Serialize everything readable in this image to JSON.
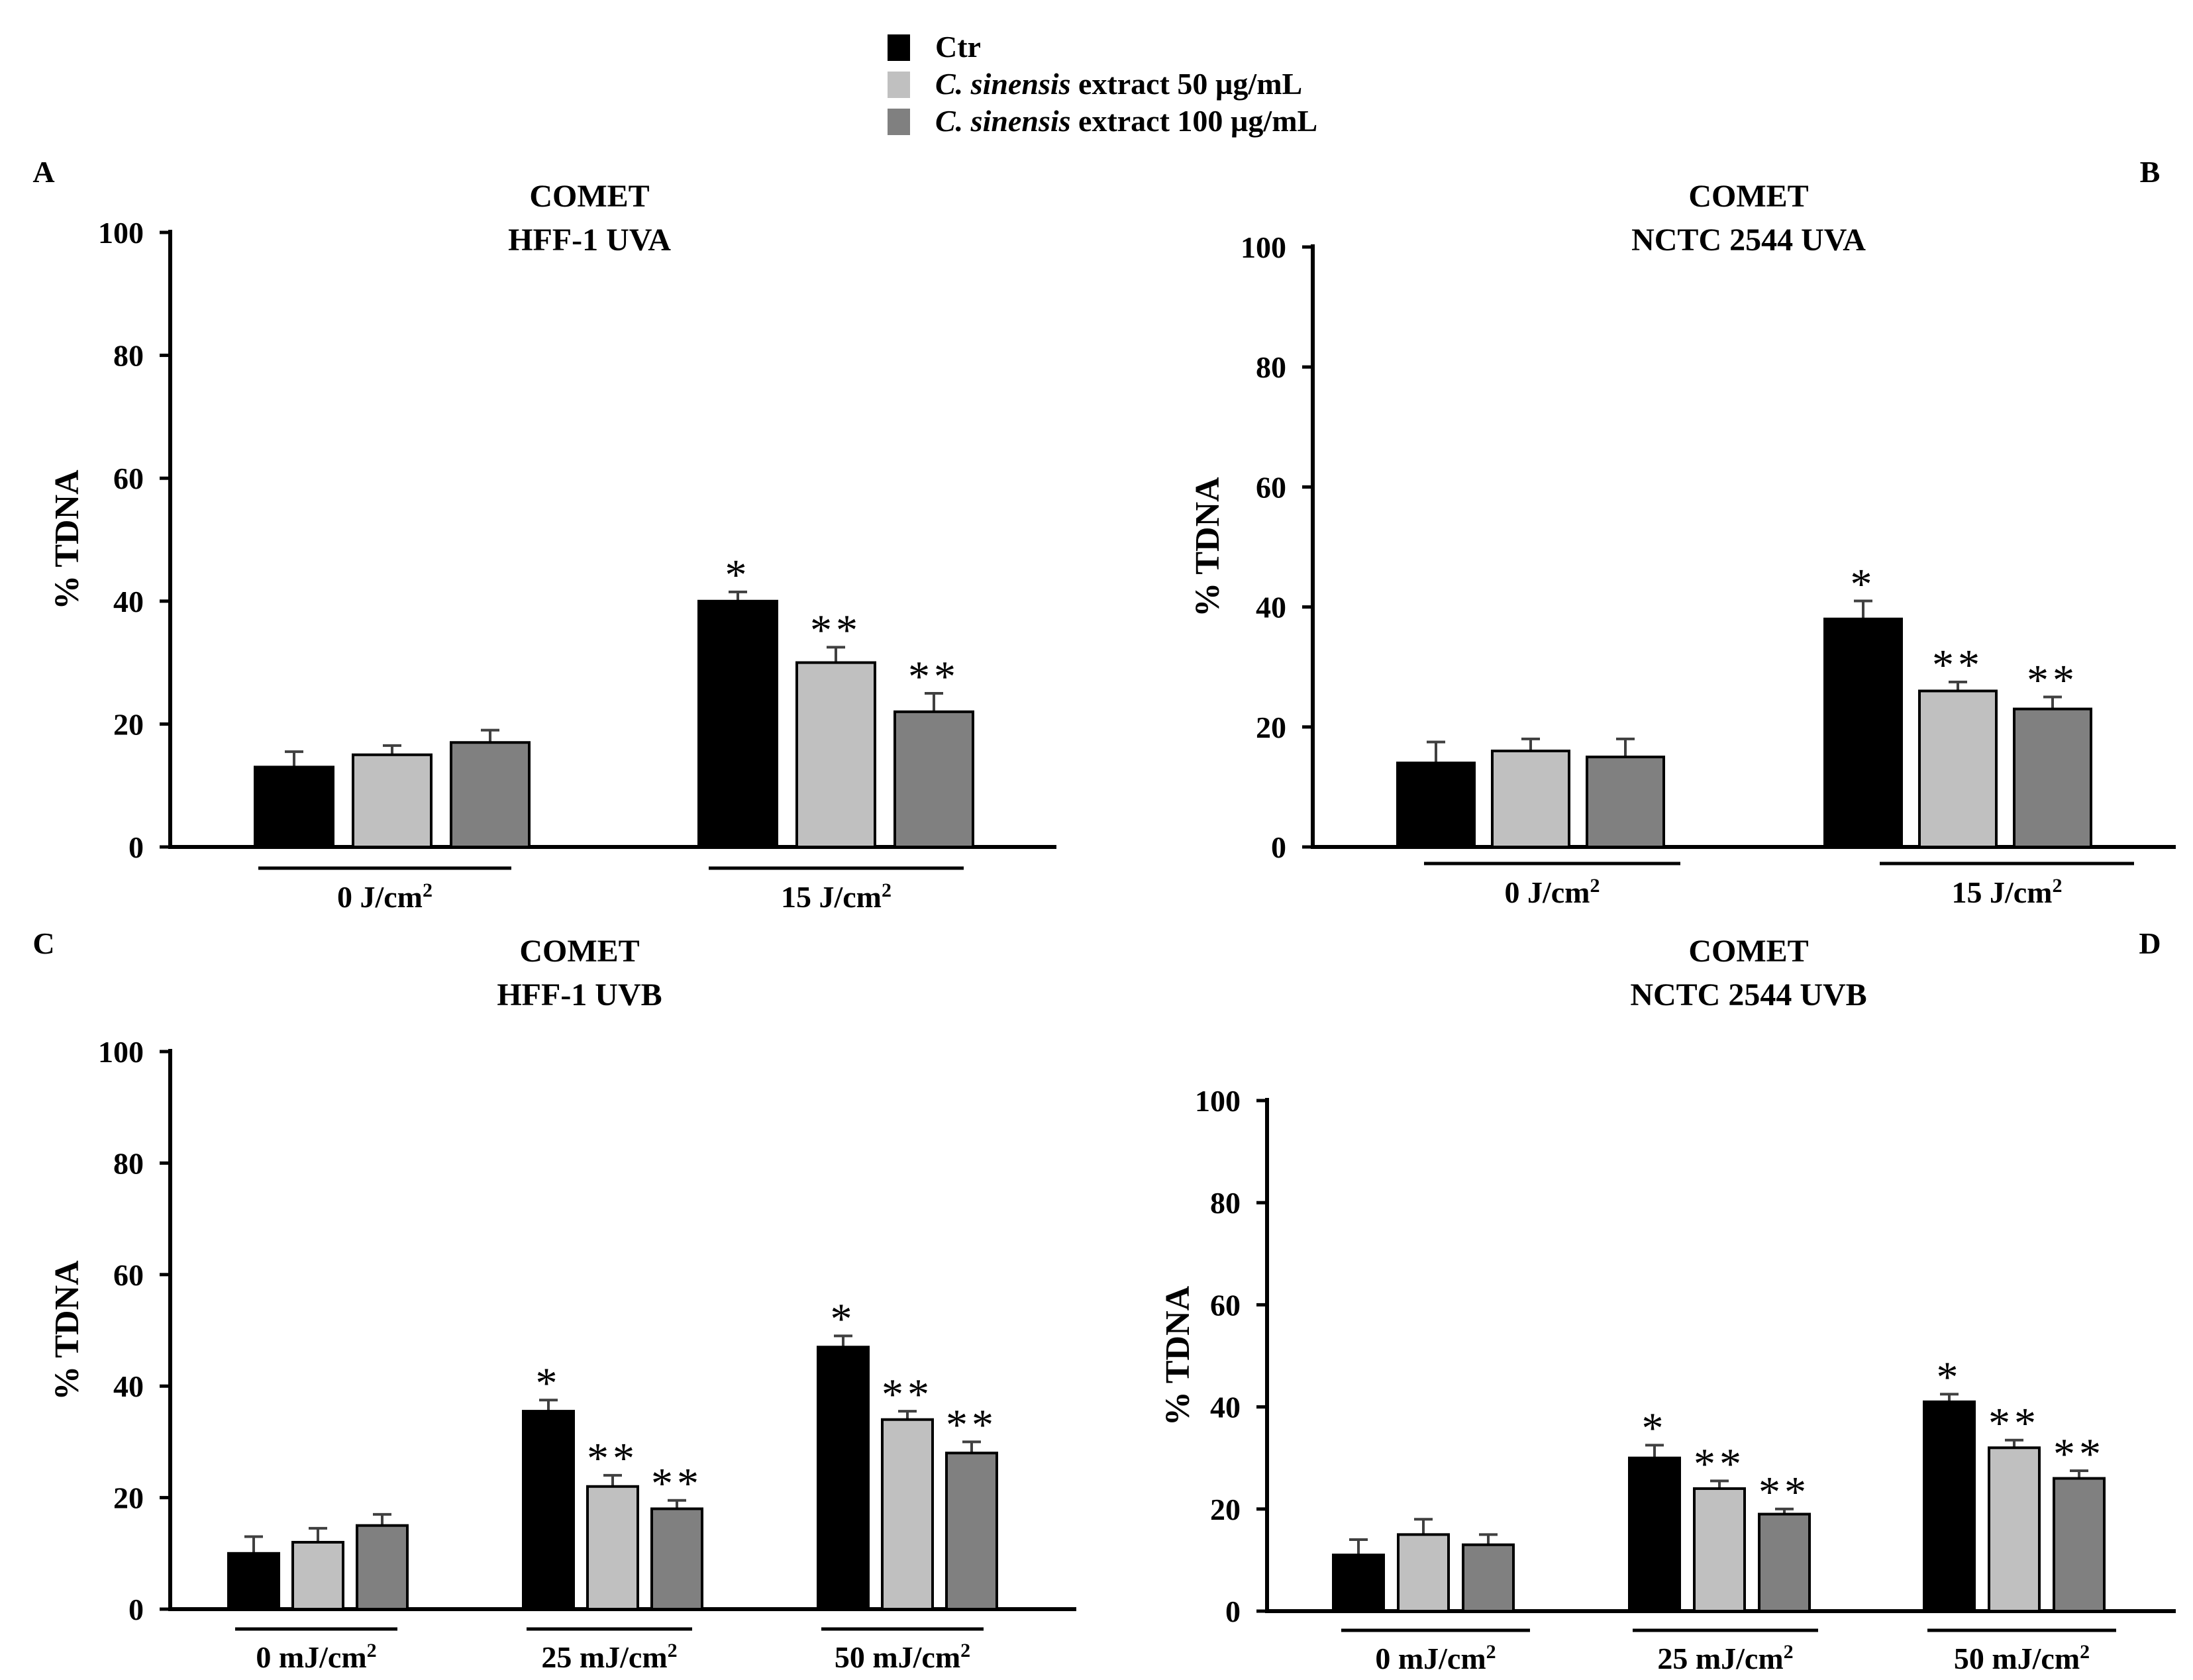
{
  "legend": {
    "items": [
      {
        "label_pre": "",
        "label_italic": "",
        "label_post": "Ctr",
        "color": "#000000"
      },
      {
        "label_pre": "",
        "label_italic": "C. sinensis",
        "label_post": " extract 50 µg/mL",
        "color": "#c0c0c0"
      },
      {
        "label_pre": "",
        "label_italic": "C. sinensis",
        "label_post": " extract 100 µg/mL",
        "color": "#808080"
      }
    ]
  },
  "colors": {
    "ctr": "#000000",
    "ext50": "#c0c0c0",
    "ext100": "#808080"
  },
  "chart_data": [
    {
      "type": "bar",
      "panel": "A",
      "title_line1": "COMET",
      "title_line2": "HFF-1 UVA",
      "ylabel": "% TDNA",
      "ylim": [
        0,
        100
      ],
      "yticks": [
        0,
        20,
        40,
        60,
        80,
        100
      ],
      "categories": [
        {
          "text": "0 J/cm",
          "sup": "2"
        },
        {
          "text": "15 J/cm",
          "sup": "2"
        }
      ],
      "series": [
        {
          "name": "Ctr",
          "values": [
            13,
            40
          ],
          "errors": [
            2.5,
            1.5
          ],
          "sig": [
            "",
            "*"
          ]
        },
        {
          "name": "C. sinensis extract 50 µg/mL",
          "values": [
            15,
            30
          ],
          "errors": [
            1.5,
            2.5
          ],
          "sig": [
            "",
            "**"
          ]
        },
        {
          "name": "C. sinensis extract 100 µg/mL",
          "values": [
            17,
            22
          ],
          "errors": [
            2,
            3
          ],
          "sig": [
            "",
            "**"
          ]
        }
      ]
    },
    {
      "type": "bar",
      "panel": "B",
      "title_line1": "COMET",
      "title_line2": "NCTC 2544 UVA",
      "ylabel": "% TDNA",
      "ylim": [
        0,
        100
      ],
      "yticks": [
        0,
        20,
        40,
        60,
        80,
        100
      ],
      "categories": [
        {
          "text": "0 J/cm",
          "sup": "2"
        },
        {
          "text": "15 J/cm",
          "sup": "2"
        }
      ],
      "series": [
        {
          "name": "Ctr",
          "values": [
            14,
            38
          ],
          "errors": [
            3.5,
            3
          ],
          "sig": [
            "",
            "*"
          ]
        },
        {
          "name": "C. sinensis extract 50 µg/mL",
          "values": [
            16,
            26
          ],
          "errors": [
            2,
            1.5
          ],
          "sig": [
            "",
            "**"
          ]
        },
        {
          "name": "C. sinensis extract 100 µg/mL",
          "values": [
            15,
            23
          ],
          "errors": [
            3,
            2
          ],
          "sig": [
            "",
            "**"
          ]
        }
      ]
    },
    {
      "type": "bar",
      "panel": "C",
      "title_line1": "COMET",
      "title_line2": "HFF-1 UVB",
      "ylabel": "% TDNA",
      "ylim": [
        0,
        100
      ],
      "yticks": [
        0,
        20,
        40,
        60,
        80,
        100
      ],
      "categories": [
        {
          "text": "0 mJ/cm",
          "sup": "2"
        },
        {
          "text": "25 mJ/cm",
          "sup": "2"
        },
        {
          "text": "50 mJ/cm",
          "sup": "2"
        }
      ],
      "series": [
        {
          "name": "Ctr",
          "values": [
            10,
            35.5,
            47
          ],
          "errors": [
            3,
            2,
            2
          ],
          "sig": [
            "",
            "*",
            "*"
          ]
        },
        {
          "name": "C. sinensis extract 50 µg/mL",
          "values": [
            12,
            22,
            34
          ],
          "errors": [
            2.5,
            2,
            1.5
          ],
          "sig": [
            "",
            "**",
            "**"
          ]
        },
        {
          "name": "C. sinensis extract 100 µg/mL",
          "values": [
            15,
            18,
            28
          ],
          "errors": [
            2,
            1.5,
            2
          ],
          "sig": [
            "",
            "**",
            "**"
          ]
        }
      ]
    },
    {
      "type": "bar",
      "panel": "D",
      "title_line1": "COMET",
      "title_line2": "NCTC 2544 UVB",
      "ylabel": "% TDNA",
      "ylim": [
        0,
        100
      ],
      "yticks": [
        0,
        20,
        40,
        60,
        80,
        100
      ],
      "categories": [
        {
          "text": "0 mJ/cm",
          "sup": "2"
        },
        {
          "text": "25 mJ/cm",
          "sup": "2"
        },
        {
          "text": "50 mJ/cm",
          "sup": "2"
        }
      ],
      "series": [
        {
          "name": "Ctr",
          "values": [
            11,
            30,
            41
          ],
          "errors": [
            3,
            2.5,
            1.5
          ],
          "sig": [
            "",
            "*",
            "*"
          ]
        },
        {
          "name": "C. sinensis extract 50 µg/mL",
          "values": [
            15,
            24,
            32
          ],
          "errors": [
            3,
            1.5,
            1.5
          ],
          "sig": [
            "",
            "**",
            "**"
          ]
        },
        {
          "name": "C. sinensis extract 100 µg/mL",
          "values": [
            13,
            19,
            26
          ],
          "errors": [
            2,
            1,
            1.5
          ],
          "sig": [
            "",
            "**",
            "**"
          ]
        }
      ]
    }
  ]
}
